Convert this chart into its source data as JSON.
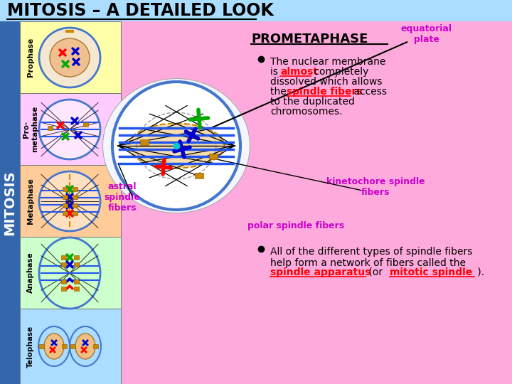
{
  "title": "MITOSIS – A DETAILED LOOK",
  "title_color": "#000000",
  "title_bg": "#aaddff",
  "main_bg": "#ffaadd",
  "left_bar_bg": "#3366aa",
  "mitosis_label": "MITOSIS",
  "stages": [
    "Prophase",
    "Pro-\nmetaphase",
    "Metaphase",
    "Anaphase",
    "Telophase"
  ],
  "stage_colors": [
    "#ffffaa",
    "#ffccff",
    "#ffcc99",
    "#ccffcc",
    "#aaddff"
  ],
  "prometaphase_title": "PROMETAPHASE",
  "equatorial_label": "equatorial\nplate",
  "equatorial_color": "#cc00cc",
  "astral_label": "astral\nspindle\nfibers",
  "astral_color": "#cc00cc",
  "polar_label": "polar spindle fibers",
  "polar_color": "#cc00cc",
  "kinetochore_label": "kinetochore spindle\nfibers",
  "kinetochore_color": "#cc00cc",
  "red_color": "#ff0000",
  "black_color": "#000000",
  "blue_chrom": "#0000cc",
  "green_chrom": "#00aa00",
  "red_chrom": "#ff0000",
  "gold_color": "#cc8800",
  "blue_fiber": "#2255ee",
  "cell_edge": "#4477cc"
}
